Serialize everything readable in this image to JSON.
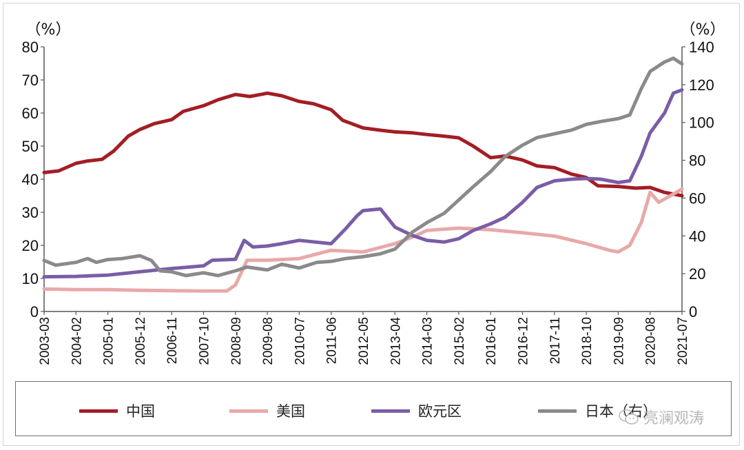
{
  "chart_data": {
    "type": "line",
    "x": [
      "2003-03",
      "2004-02",
      "2005-01",
      "2005-12",
      "2006-11",
      "2007-10",
      "2008-09",
      "2009-08",
      "2010-07",
      "2011-06",
      "2012-05",
      "2013-04",
      "2014-03",
      "2015-02",
      "2016-01",
      "2016-12",
      "2017-11",
      "2018-10",
      "2019-09",
      "2020-08",
      "2021-07"
    ],
    "x_range": [
      "2003-03",
      "2021-07"
    ],
    "left_axis": {
      "label": "（%）",
      "ylim": [
        0,
        80
      ],
      "ticks": [
        0,
        10,
        20,
        30,
        40,
        50,
        60,
        70,
        80
      ]
    },
    "right_axis": {
      "label": "（%）",
      "ylim": [
        0,
        140
      ],
      "ticks": [
        0,
        20,
        40,
        60,
        80,
        100,
        120,
        140
      ]
    },
    "grid": false,
    "legend_position": "bottom",
    "series": [
      {
        "name": "中国",
        "axis": "left",
        "color": "#a31e25",
        "points": [
          [
            "2003-03",
            42.0
          ],
          [
            "2003-08",
            42.5
          ],
          [
            "2004-02",
            44.8
          ],
          [
            "2004-06",
            45.5
          ],
          [
            "2004-11",
            46.0
          ],
          [
            "2005-03",
            48.5
          ],
          [
            "2005-08",
            53.0
          ],
          [
            "2005-12",
            55.0
          ],
          [
            "2006-05",
            56.8
          ],
          [
            "2006-11",
            58.0
          ],
          [
            "2007-03",
            60.5
          ],
          [
            "2007-10",
            62.2
          ],
          [
            "2008-03",
            64.0
          ],
          [
            "2008-09",
            65.6
          ],
          [
            "2009-02",
            65.0
          ],
          [
            "2009-08",
            66.0
          ],
          [
            "2010-01",
            65.2
          ],
          [
            "2010-07",
            63.5
          ],
          [
            "2010-12",
            62.8
          ],
          [
            "2011-06",
            61.0
          ],
          [
            "2011-10",
            57.8
          ],
          [
            "2012-05",
            55.5
          ],
          [
            "2012-11",
            54.8
          ],
          [
            "2013-04",
            54.3
          ],
          [
            "2013-10",
            54.0
          ],
          [
            "2014-03",
            53.5
          ],
          [
            "2014-09",
            53.0
          ],
          [
            "2015-02",
            52.5
          ],
          [
            "2015-07",
            50.0
          ],
          [
            "2016-01",
            46.5
          ],
          [
            "2016-06",
            47.0
          ],
          [
            "2016-12",
            45.8
          ],
          [
            "2017-05",
            44.0
          ],
          [
            "2017-11",
            43.5
          ],
          [
            "2018-05",
            41.5
          ],
          [
            "2018-10",
            40.5
          ],
          [
            "2019-02",
            38.0
          ],
          [
            "2019-09",
            37.8
          ],
          [
            "2020-03",
            37.3
          ],
          [
            "2020-08",
            37.5
          ],
          [
            "2021-01",
            36.0
          ],
          [
            "2021-07",
            35.0
          ]
        ]
      },
      {
        "name": "美国",
        "axis": "left",
        "color": "#e8a9a9",
        "points": [
          [
            "2003-03",
            6.8
          ],
          [
            "2004-02",
            6.6
          ],
          [
            "2005-01",
            6.6
          ],
          [
            "2005-12",
            6.4
          ],
          [
            "2006-11",
            6.3
          ],
          [
            "2007-10",
            6.2
          ],
          [
            "2008-06",
            6.2
          ],
          [
            "2008-09",
            8.0
          ],
          [
            "2009-01",
            15.5
          ],
          [
            "2009-08",
            15.5
          ],
          [
            "2010-07",
            16.0
          ],
          [
            "2011-06",
            18.5
          ],
          [
            "2012-05",
            18.0
          ],
          [
            "2013-04",
            20.5
          ],
          [
            "2013-10",
            22.5
          ],
          [
            "2014-03",
            24.5
          ],
          [
            "2015-02",
            25.2
          ],
          [
            "2016-01",
            24.7
          ],
          [
            "2016-12",
            23.8
          ],
          [
            "2017-11",
            22.8
          ],
          [
            "2018-10",
            20.5
          ],
          [
            "2019-06",
            18.5
          ],
          [
            "2019-09",
            18.0
          ],
          [
            "2020-01",
            20.0
          ],
          [
            "2020-05",
            27.0
          ],
          [
            "2020-08",
            36.0
          ],
          [
            "2020-11",
            33.0
          ],
          [
            "2021-03",
            35.0
          ],
          [
            "2021-07",
            37.0
          ]
        ]
      },
      {
        "name": "欧元区",
        "axis": "left",
        "color": "#7a5da6",
        "points": [
          [
            "2003-03",
            10.5
          ],
          [
            "2004-02",
            10.6
          ],
          [
            "2005-01",
            11.0
          ],
          [
            "2005-12",
            12.0
          ],
          [
            "2006-11",
            13.0
          ],
          [
            "2007-10",
            13.8
          ],
          [
            "2008-01",
            15.5
          ],
          [
            "2008-09",
            15.8
          ],
          [
            "2008-12",
            21.5
          ],
          [
            "2009-03",
            19.5
          ],
          [
            "2009-08",
            19.8
          ],
          [
            "2010-01",
            20.5
          ],
          [
            "2010-07",
            21.5
          ],
          [
            "2011-06",
            20.5
          ],
          [
            "2011-11",
            25.0
          ],
          [
            "2012-03",
            29.0
          ],
          [
            "2012-05",
            30.5
          ],
          [
            "2012-11",
            31.0
          ],
          [
            "2013-04",
            25.5
          ],
          [
            "2013-10",
            23.0
          ],
          [
            "2014-03",
            21.5
          ],
          [
            "2014-09",
            21.0
          ],
          [
            "2015-02",
            22.0
          ],
          [
            "2015-07",
            24.5
          ],
          [
            "2016-01",
            26.5
          ],
          [
            "2016-06",
            28.5
          ],
          [
            "2016-12",
            33.0
          ],
          [
            "2017-05",
            37.5
          ],
          [
            "2017-11",
            39.5
          ],
          [
            "2018-05",
            40.0
          ],
          [
            "2018-10",
            40.2
          ],
          [
            "2019-03",
            40.0
          ],
          [
            "2019-09",
            39.0
          ],
          [
            "2020-01",
            39.5
          ],
          [
            "2020-05",
            47.0
          ],
          [
            "2020-08",
            54.0
          ],
          [
            "2021-01",
            60.0
          ],
          [
            "2021-04",
            66.0
          ],
          [
            "2021-07",
            67.0
          ]
        ]
      },
      {
        "name": "日本（右）",
        "axis": "right",
        "color": "#8a8a8a",
        "points": [
          [
            "2003-03",
            27.0
          ],
          [
            "2003-07",
            24.5
          ],
          [
            "2004-02",
            26.0
          ],
          [
            "2004-06",
            28.0
          ],
          [
            "2004-09",
            26.0
          ],
          [
            "2005-01",
            27.5
          ],
          [
            "2005-06",
            28.0
          ],
          [
            "2005-12",
            29.5
          ],
          [
            "2006-04",
            27.0
          ],
          [
            "2006-07",
            21.5
          ],
          [
            "2006-11",
            21.0
          ],
          [
            "2007-04",
            19.0
          ],
          [
            "2007-10",
            20.5
          ],
          [
            "2008-03",
            19.0
          ],
          [
            "2008-09",
            21.5
          ],
          [
            "2009-01",
            23.5
          ],
          [
            "2009-08",
            22.0
          ],
          [
            "2010-01",
            25.0
          ],
          [
            "2010-07",
            23.0
          ],
          [
            "2011-01",
            26.0
          ],
          [
            "2011-06",
            26.5
          ],
          [
            "2011-11",
            28.0
          ],
          [
            "2012-05",
            29.0
          ],
          [
            "2012-11",
            30.5
          ],
          [
            "2013-04",
            33.0
          ],
          [
            "2013-10",
            42.0
          ],
          [
            "2014-03",
            47.0
          ],
          [
            "2014-09",
            52.0
          ],
          [
            "2015-02",
            59.0
          ],
          [
            "2015-07",
            66.0
          ],
          [
            "2016-01",
            74.0
          ],
          [
            "2016-06",
            82.0
          ],
          [
            "2016-12",
            88.0
          ],
          [
            "2017-05",
            92.0
          ],
          [
            "2017-11",
            94.0
          ],
          [
            "2018-05",
            96.0
          ],
          [
            "2018-10",
            99.0
          ],
          [
            "2019-03",
            100.5
          ],
          [
            "2019-09",
            102.0
          ],
          [
            "2020-01",
            104.0
          ],
          [
            "2020-05",
            118.0
          ],
          [
            "2020-08",
            127.0
          ],
          [
            "2021-01",
            132.0
          ],
          [
            "2021-04",
            134.0
          ],
          [
            "2021-07",
            131.0
          ]
        ]
      }
    ]
  },
  "watermark": {
    "text": "亮澜观涛",
    "icon": "wechat-icon"
  }
}
